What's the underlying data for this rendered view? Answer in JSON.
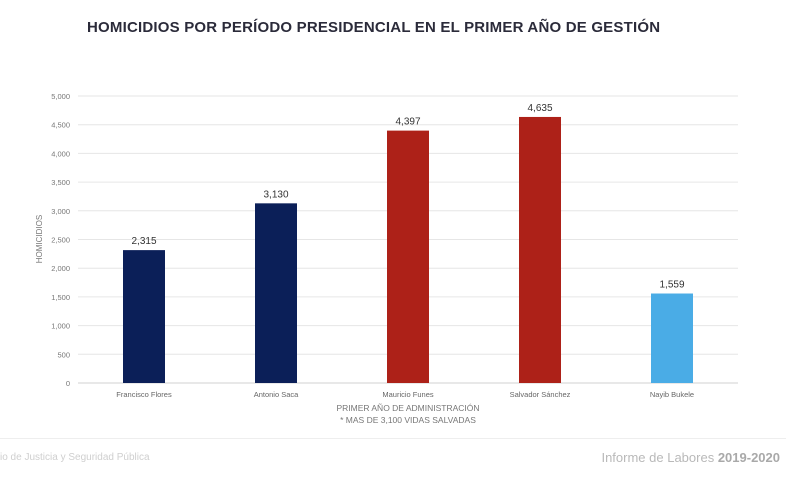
{
  "chart_data": {
    "type": "bar",
    "title": "HOMICIDIOS POR PERÍODO PRESIDENCIAL EN EL PRIMER AÑO DE GESTIÓN",
    "xlabel": "PRIMER AÑO DE ADMINISTRACIÓN",
    "note": "* MAS DE 3,100 VIDAS SALVADAS",
    "ylabel": "HOMICIDIOS",
    "ylim": [
      0,
      5000
    ],
    "yticks": [
      0,
      500,
      1000,
      1500,
      2000,
      2500,
      3000,
      3500,
      4000,
      4500,
      5000
    ],
    "ytick_labels": [
      "0",
      "500",
      "1,000",
      "1,500",
      "2,000",
      "2,500",
      "3,000",
      "3,500",
      "4,000",
      "4,500",
      "5,000"
    ],
    "grid": true,
    "categories": [
      "Francisco Flores",
      "Antonio Saca",
      "Mauricio Funes",
      "Salvador Sánchez",
      "Nayib Bukele"
    ],
    "values": [
      2315,
      3130,
      4397,
      4635,
      1559
    ],
    "value_labels": [
      "2,315",
      "3,130",
      "4,397",
      "4,635",
      "1,559"
    ],
    "colors": [
      "#0b1f58",
      "#0b1f58",
      "#ad2118",
      "#ad2118",
      "#4aace6"
    ]
  },
  "footer": {
    "left_text": "io de Justicia y Seguridad Pública",
    "right_text": "Informe de Labores ",
    "right_years": "2019-2020"
  }
}
